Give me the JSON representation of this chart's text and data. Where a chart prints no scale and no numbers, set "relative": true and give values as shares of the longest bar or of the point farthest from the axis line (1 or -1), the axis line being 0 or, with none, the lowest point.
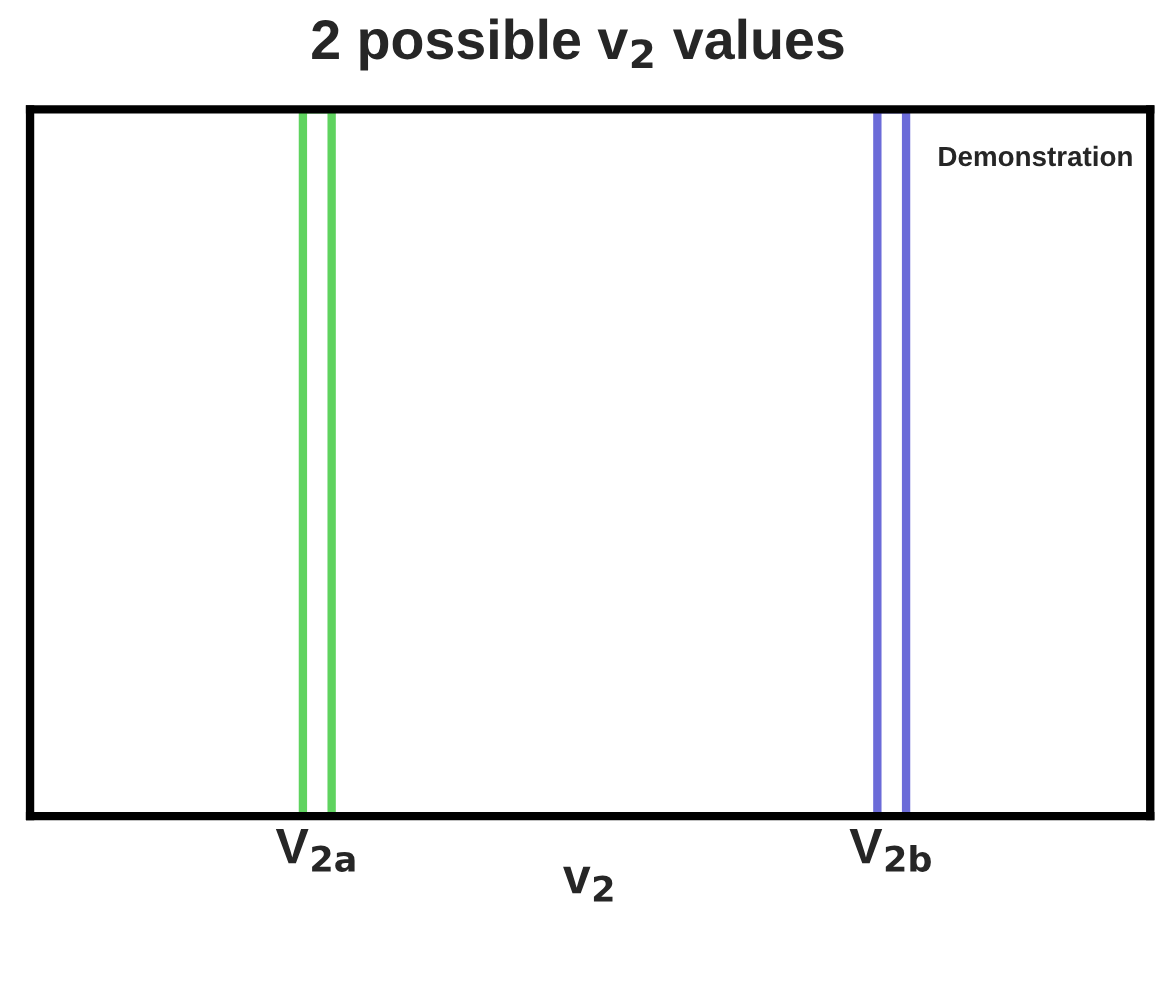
{
  "chart_data": {
    "type": "bar",
    "title": "2 possible v$_{2}$ values",
    "xlabel": "v$_{2}$",
    "categories": [
      "V$_{2a}$",
      "V$_{2b}$"
    ],
    "values": [
      1,
      1
    ],
    "colors": [
      "#5fd35f",
      "#6b6bd8"
    ],
    "relative": true,
    "grid": false,
    "legend": false,
    "annotations": [
      "Demonstration"
    ]
  }
}
